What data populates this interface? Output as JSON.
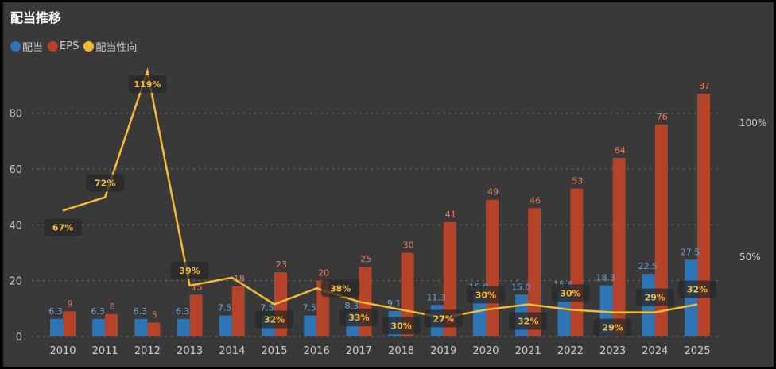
{
  "chart_data": {
    "type": "bar+line",
    "title": "配当推移",
    "categories": [
      "2010",
      "2011",
      "2012",
      "2013",
      "2014",
      "2015",
      "2016",
      "2017",
      "2018",
      "2019",
      "2020",
      "2021",
      "2022",
      "2023",
      "2024",
      "2025"
    ],
    "series": [
      {
        "name": "配当",
        "type": "bar",
        "axis": "left",
        "color": "#2e75b6",
        "values": [
          6.3,
          6.3,
          6.3,
          6.3,
          7.5,
          7.5,
          7.5,
          8.3,
          9.1,
          11.3,
          15.0,
          15.0,
          15.8,
          18.3,
          22.5,
          27.5
        ],
        "labels": [
          "6.3",
          "6.3",
          "6.3",
          "6.3",
          "7.5",
          "7.5",
          "7.5",
          "8.3",
          "9.1",
          "11.3",
          "15.0",
          "15.0",
          "15.8",
          "18.3",
          "22.5",
          "27.5"
        ]
      },
      {
        "name": "EPS",
        "type": "bar",
        "axis": "left",
        "color": "#b5432a",
        "values": [
          9,
          8,
          5,
          15,
          18,
          23,
          20,
          25,
          30,
          41,
          49,
          46,
          53,
          64,
          76,
          87
        ],
        "labels": [
          "9",
          "8",
          "5",
          "15",
          "18",
          "23",
          "20",
          "25",
          "30",
          "41",
          "49",
          "46",
          "53",
          "64",
          "76",
          "87"
        ]
      },
      {
        "name": "配当性向",
        "type": "line",
        "axis": "right",
        "color": "#f6bb32",
        "values": [
          67,
          72,
          119,
          39,
          42,
          32,
          38,
          33,
          30,
          27,
          30,
          32,
          30,
          29,
          29,
          32
        ],
        "labels": [
          "67%",
          "72%",
          "119%",
          "39%",
          "",
          "32%",
          "38%",
          "33%",
          "30%",
          "27%",
          "30%",
          "32%",
          "30%",
          "29%",
          "29%",
          "32%"
        ]
      }
    ],
    "left_axis": {
      "ticks": [
        "0",
        "20",
        "40",
        "60",
        "80"
      ],
      "tick_values": [
        0,
        20,
        40,
        60,
        80
      ],
      "ylim": [
        0,
        95
      ]
    },
    "right_axis": {
      "ticks": [
        "50%",
        "100%"
      ],
      "tick_values": [
        50,
        100
      ],
      "ylim": [
        20,
        119
      ]
    },
    "grid": true,
    "legend": "top-left"
  }
}
